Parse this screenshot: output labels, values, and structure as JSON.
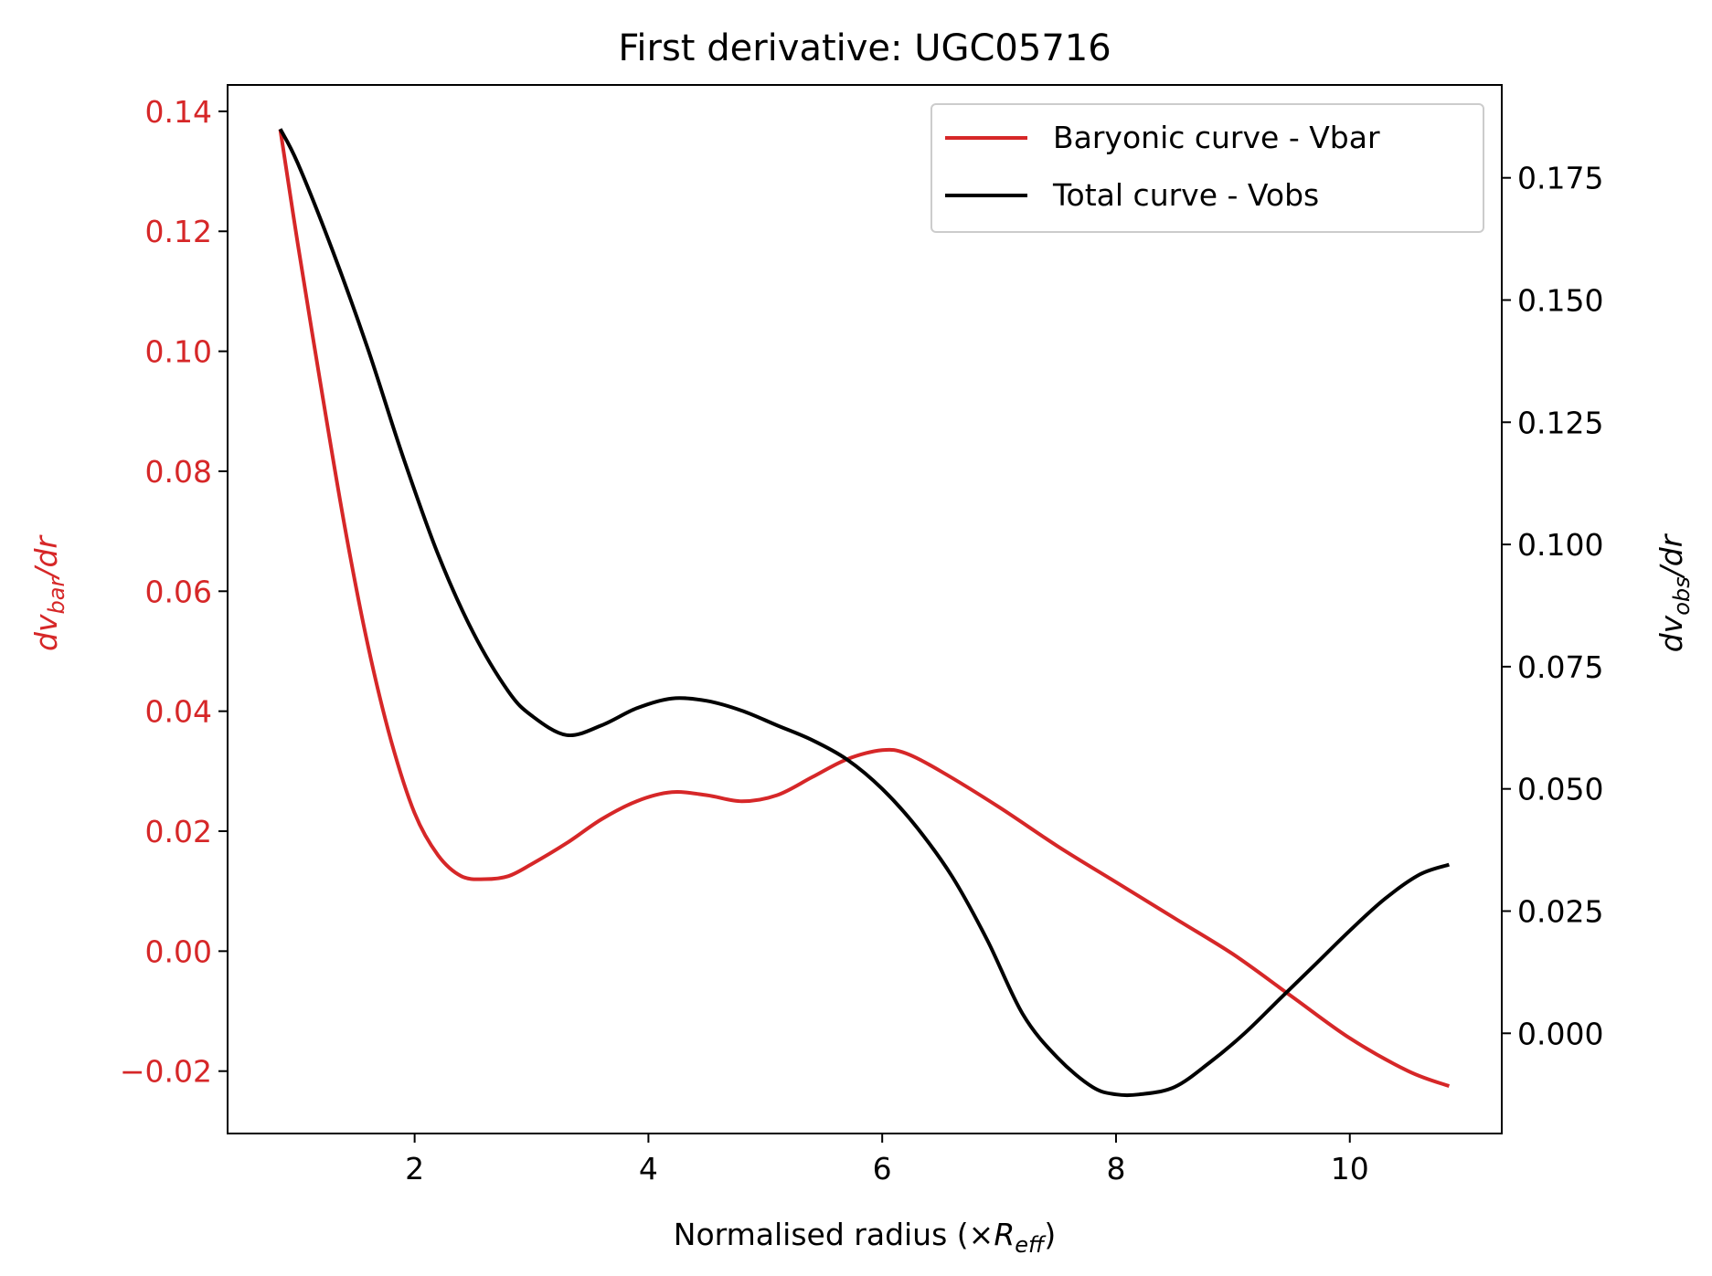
{
  "chart_data": {
    "type": "line",
    "title": "First derivative: UGC05716",
    "xlabel": {
      "prefix": "Normalised radius (×",
      "symbol": "R",
      "subscript": "eff",
      "suffix": ")"
    },
    "ylabel_left": {
      "prefix": "dv",
      "subscript": "bar",
      "suffix": "/dr"
    },
    "ylabel_right": {
      "prefix": "dv",
      "subscript": "obs",
      "suffix": "/dr"
    },
    "xlim": [
      0.4,
      11.3
    ],
    "ylim_left": [
      -0.0304,
      0.1444
    ],
    "ylim_right": [
      -0.0205,
      0.194
    ],
    "x_ticks": [
      "2",
      "4",
      "6",
      "8",
      "10"
    ],
    "y_left_ticks": [
      "−0.02",
      "0.00",
      "0.02",
      "0.04",
      "0.06",
      "0.08",
      "0.10",
      "0.12",
      "0.14"
    ],
    "y_right_ticks": [
      "0.000",
      "0.025",
      "0.050",
      "0.075",
      "0.100",
      "0.125",
      "0.150",
      "0.175"
    ],
    "legend": {
      "placement": "top-right"
    },
    "colors": {
      "bar": "#d62728",
      "obs": "#000000",
      "left_axis": "#d62728"
    },
    "series": [
      {
        "name": "Baryonic curve - Vbar",
        "axis": "left",
        "color": "#d62728",
        "x": [
          0.85,
          1.0,
          1.2,
          1.4,
          1.6,
          1.8,
          2.0,
          2.2,
          2.4,
          2.6,
          2.8,
          3.0,
          3.3,
          3.6,
          3.9,
          4.2,
          4.5,
          4.8,
          5.1,
          5.4,
          5.7,
          6.0,
          6.2,
          6.5,
          7.0,
          7.5,
          8.0,
          8.5,
          9.0,
          9.5,
          10.0,
          10.5,
          10.85
        ],
        "y": [
          0.137,
          0.118,
          0.094,
          0.071,
          0.051,
          0.035,
          0.023,
          0.016,
          0.0125,
          0.012,
          0.0125,
          0.0145,
          0.018,
          0.022,
          0.025,
          0.0265,
          0.026,
          0.025,
          0.026,
          0.029,
          0.032,
          0.0335,
          0.033,
          0.03,
          0.024,
          0.0175,
          0.0115,
          0.0055,
          -0.0005,
          -0.0075,
          -0.0145,
          -0.02,
          -0.0225
        ]
      },
      {
        "name": "Total curve - Vobs",
        "axis": "right",
        "color": "#000000",
        "x": [
          0.85,
          1.0,
          1.3,
          1.6,
          1.9,
          2.2,
          2.5,
          2.8,
          3.0,
          3.3,
          3.6,
          3.9,
          4.2,
          4.5,
          4.8,
          5.1,
          5.4,
          5.7,
          6.0,
          6.3,
          6.6,
          6.9,
          7.2,
          7.5,
          7.8,
          8.0,
          8.2,
          8.5,
          8.8,
          9.1,
          9.4,
          9.7,
          10.0,
          10.3,
          10.6,
          10.85
        ],
        "y": [
          0.185,
          0.178,
          0.16,
          0.14,
          0.118,
          0.098,
          0.082,
          0.07,
          0.065,
          0.061,
          0.063,
          0.0665,
          0.0685,
          0.068,
          0.066,
          0.063,
          0.06,
          0.056,
          0.05,
          0.042,
          0.032,
          0.019,
          0.004,
          -0.005,
          -0.011,
          -0.0125,
          -0.0125,
          -0.011,
          -0.006,
          0.0,
          0.007,
          0.014,
          0.021,
          0.0275,
          0.0325,
          0.0345
        ]
      }
    ]
  }
}
